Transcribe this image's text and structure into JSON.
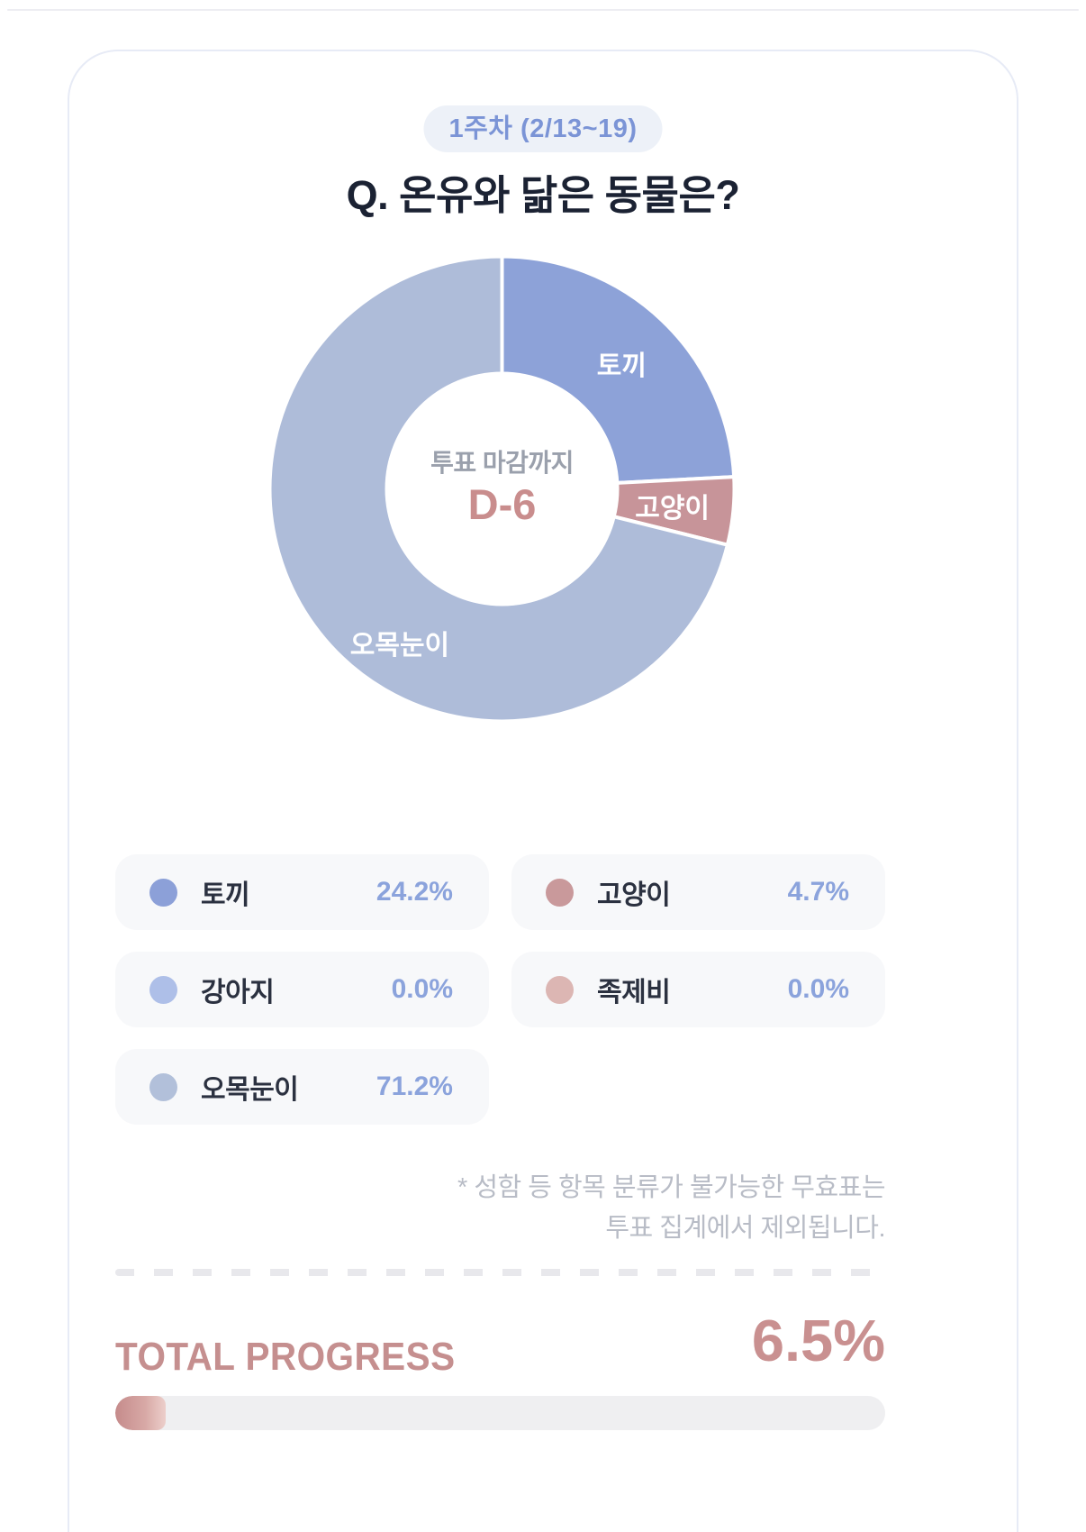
{
  "page": {
    "week_badge": "1주차 (2/13~19)",
    "question": "Q. 온유와 닮은 동물은?"
  },
  "chart_data": {
    "type": "pie",
    "subtype": "donut",
    "title": "Q. 온유와 닮은 동물은?",
    "categories": [
      "토끼",
      "고양이",
      "강아지",
      "족제비",
      "오목눈이"
    ],
    "values": [
      24.2,
      4.7,
      0.0,
      0.0,
      71.2
    ],
    "unit": "%",
    "slice_colors": [
      "#8da2d8",
      "#c79499",
      "#aebfe8",
      "#dcb6b3",
      "#aebcd9"
    ],
    "start_angle_deg": 0,
    "direction": "clockwise",
    "center_label": "투표 마감까지",
    "center_value": "D-6",
    "segment_labels": [
      "토끼",
      "고양이",
      "오목눈이"
    ],
    "legend_position": "bottom"
  },
  "legend": {
    "items": [
      {
        "label": "토끼",
        "value": "24.2%",
        "color": "#8ca0d8"
      },
      {
        "label": "고양이",
        "value": "4.7%",
        "color": "#c9999b"
      },
      {
        "label": "강아지",
        "value": "0.0%",
        "color": "#aebfe8"
      },
      {
        "label": "족제비",
        "value": "0.0%",
        "color": "#dcb6b3"
      },
      {
        "label": "오목눈이",
        "value": "71.2%",
        "color": "#b2c0da"
      }
    ],
    "value_color": "#8ba3dc"
  },
  "footnote": {
    "line1": "* 성함 등 항목 분류가 불가능한 무효표는",
    "line2": "투표 집계에서 제외됩니다."
  },
  "progress": {
    "label": "TOTAL PROGRESS",
    "value": "6.5%",
    "percent": 6.5,
    "accent_color": "#c58f8f"
  },
  "theme": {
    "card_border": "#e7ebf6",
    "badge_bg": "#edf1f8",
    "badge_text": "#7b94d6",
    "title_color": "#1b2233",
    "center_label_color": "#9aa0ac",
    "dday_color": "#c98d8d",
    "legend_bg": "#f7f8fa",
    "footnote_color": "#b8bcc6"
  }
}
